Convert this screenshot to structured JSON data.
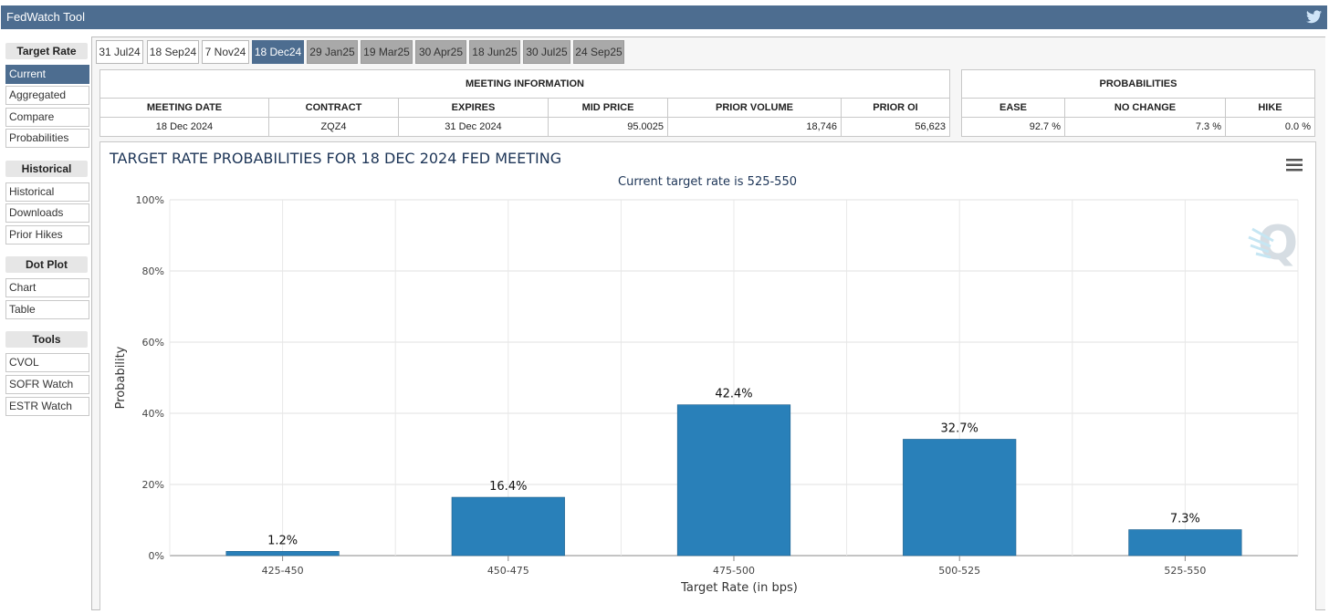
{
  "app": {
    "title": "FedWatch Tool"
  },
  "sidebar": {
    "sections": [
      {
        "heading": "Target Rate",
        "items": [
          "Current",
          "Aggregated",
          "Compare",
          "Probabilities"
        ]
      },
      {
        "heading": "Historical",
        "items": [
          "Historical",
          "Downloads",
          "Prior Hikes"
        ]
      },
      {
        "heading": "Dot Plot",
        "items": [
          "Chart",
          "Table"
        ]
      },
      {
        "heading": "Tools",
        "items": [
          "CVOL",
          "SOFR Watch",
          "ESTR Watch"
        ]
      }
    ],
    "active_item": "Current"
  },
  "tabs": [
    "31 Jul24",
    "18 Sep24",
    "7 Nov24",
    "18 Dec24",
    "29 Jan25",
    "19 Mar25",
    "30 Apr25",
    "18 Jun25",
    "30 Jul25",
    "24 Sep25"
  ],
  "active_tab": "18 Dec24",
  "meeting_info": {
    "caption": "MEETING INFORMATION",
    "headers": [
      "MEETING DATE",
      "CONTRACT",
      "EXPIRES",
      "MID PRICE",
      "PRIOR VOLUME",
      "PRIOR OI"
    ],
    "values": [
      "18 Dec 2024",
      "ZQZ4",
      "31 Dec 2024",
      "95.0025",
      "18,746",
      "56,623"
    ]
  },
  "probabilities": {
    "caption": "PROBABILITIES",
    "headers": [
      "EASE",
      "NO CHANGE",
      "HIKE"
    ],
    "values": [
      "92.7 %",
      "7.3 %",
      "0.0 %"
    ]
  },
  "chart_data": {
    "type": "bar",
    "title": "TARGET RATE PROBABILITIES FOR 18 DEC 2024 FED MEETING",
    "subtitle": "Current target rate is 525-550",
    "xlabel": "Target Rate (in bps)",
    "ylabel": "Probability",
    "categories": [
      "425-450",
      "450-475",
      "475-500",
      "500-525",
      "525-550"
    ],
    "values": [
      1.2,
      16.4,
      42.4,
      32.7,
      7.3
    ],
    "data_labels": [
      "1.2%",
      "16.4%",
      "42.4%",
      "32.7%",
      "7.3%"
    ],
    "yticks": [
      "0%",
      "20%",
      "40%",
      "60%",
      "80%",
      "100%"
    ],
    "ylim": [
      0,
      100
    ],
    "grid": true,
    "bar_color": "#2980b9"
  },
  "colors": {
    "header": "#4d6d90",
    "future_tab": "#a9a9a9",
    "bar": "#2980b9"
  },
  "icons": {
    "social": "twitter-icon",
    "menu": "hamburger-menu-icon",
    "watermark": "q-logo-icon"
  }
}
